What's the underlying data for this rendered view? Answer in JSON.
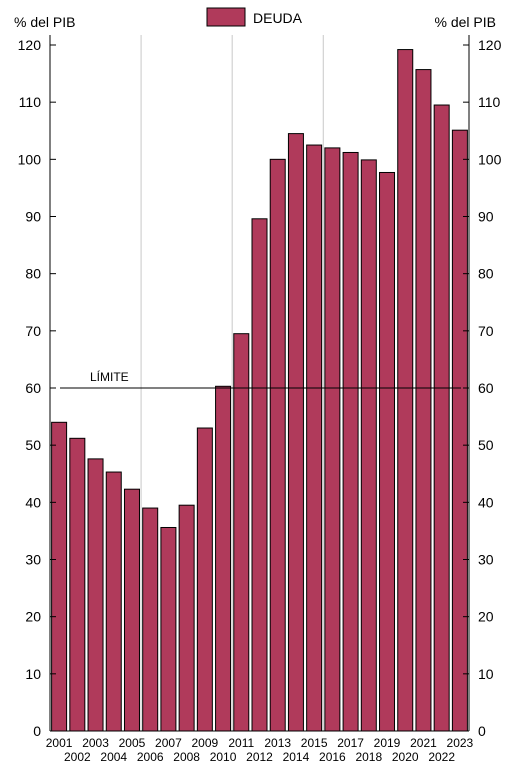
{
  "chart_data": {
    "type": "bar",
    "y_unit_left": "% del PIB",
    "y_unit_right": "% del PIB",
    "ylim": [
      0,
      120
    ],
    "yticks": [
      0,
      10,
      20,
      30,
      40,
      50,
      60,
      70,
      80,
      90,
      100,
      110,
      120
    ],
    "categories": [
      "2001",
      "2002",
      "2003",
      "2004",
      "2005",
      "2006",
      "2007",
      "2008",
      "2009",
      "2010",
      "2011",
      "2012",
      "2013",
      "2014",
      "2015",
      "2016",
      "2017",
      "2018",
      "2019",
      "2020",
      "2021",
      "2022",
      "2023"
    ],
    "series": [
      {
        "name": "DEUDA",
        "color": "#b03a5b",
        "values": [
          54.0,
          51.2,
          47.6,
          45.3,
          42.3,
          39.0,
          35.6,
          39.5,
          53.0,
          60.3,
          69.5,
          89.6,
          100.0,
          104.5,
          102.5,
          102.0,
          101.2,
          99.9,
          97.7,
          119.2,
          115.7,
          109.5,
          105.1
        ]
      }
    ],
    "reference_line": {
      "label": "LÍMITE",
      "value": 60
    },
    "legend": "top-center",
    "grid": "vertical lines at 2005/2006, 2010/2011, 2015/2016",
    "vertical_gridlines_after": [
      "2005",
      "2010",
      "2015"
    ]
  }
}
